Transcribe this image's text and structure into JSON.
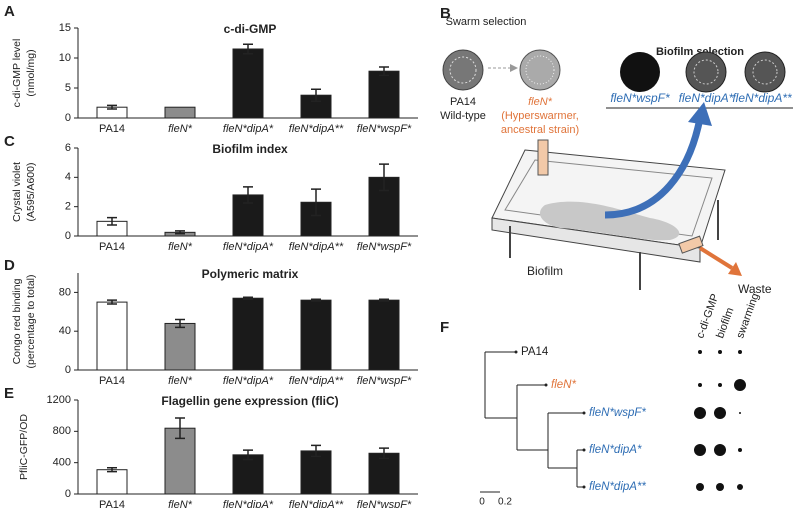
{
  "panel_labels": [
    "A",
    "B",
    "C",
    "D",
    "E",
    "F"
  ],
  "chart_data": [
    {
      "type": "bar",
      "title": "c-di-GMP",
      "ylabel": [
        "c-di-GMP level",
        "(nmol/mg)"
      ],
      "categories": [
        "PA14",
        "fleN*",
        "fleN*dipA*",
        "fleN*dipA**",
        "fleN*wspF*"
      ],
      "values": [
        1.8,
        1.8,
        11.5,
        3.8,
        7.8
      ],
      "errors": [
        0.3,
        null,
        0.8,
        1.0,
        0.7
      ],
      "colors": [
        "#ffffff",
        "#8c8c8c",
        "#1a1a1a",
        "#1a1a1a",
        "#1a1a1a"
      ],
      "ylim": [
        0,
        15
      ],
      "yticks": [
        0,
        5,
        10,
        15
      ]
    },
    {
      "type": "bar",
      "title": "Biofilm index",
      "ylabel": [
        "Crystal violet",
        "(A595/A600)"
      ],
      "categories": [
        "PA14",
        "fleN*",
        "fleN*dipA*",
        "fleN*dipA**",
        "fleN*wspF*"
      ],
      "values": [
        1.0,
        0.25,
        2.8,
        2.3,
        4.0
      ],
      "errors": [
        0.25,
        0.1,
        0.55,
        0.9,
        0.9
      ],
      "colors": [
        "#ffffff",
        "#8c8c8c",
        "#1a1a1a",
        "#1a1a1a",
        "#1a1a1a"
      ],
      "ylim": [
        0,
        6
      ],
      "yticks": [
        0,
        2,
        4,
        6
      ]
    },
    {
      "type": "bar",
      "title": "Polymeric matrix",
      "ylabel": [
        "Congo red binding",
        "(percentage to total)"
      ],
      "categories": [
        "PA14",
        "fleN*",
        "fleN*dipA*",
        "fleN*dipA**",
        "fleN*wspF*"
      ],
      "values": [
        70,
        48,
        74,
        72,
        72
      ],
      "errors": [
        2,
        4,
        1,
        1,
        1
      ],
      "colors": [
        "#ffffff",
        "#8c8c8c",
        "#1a1a1a",
        "#1a1a1a",
        "#1a1a1a"
      ],
      "ylim": [
        0,
        100
      ],
      "yticks": [
        0,
        40,
        80
      ]
    },
    {
      "type": "bar",
      "title": "Flagellin gene expression (fliC)",
      "ylabel": [
        "PfliC-GFP/OD"
      ],
      "categories": [
        "PA14",
        "fleN*",
        "fleN*dipA*",
        "fleN*dipA**",
        "fleN*wspF*"
      ],
      "values": [
        310,
        840,
        500,
        550,
        520
      ],
      "errors": [
        25,
        130,
        60,
        70,
        65
      ],
      "colors": [
        "#ffffff",
        "#8c8c8c",
        "#1a1a1a",
        "#1a1a1a",
        "#1a1a1a"
      ],
      "ylim": [
        0,
        1200
      ],
      "yticks": [
        0,
        400,
        800,
        1200
      ]
    }
  ],
  "diagram": {
    "swarm_title": "Swarm selection",
    "wt_name": "PA14",
    "wt_desc": "Wild-type",
    "ancestor_name": "fleN*",
    "ancestor_desc": [
      "(Hyperswarmer,",
      "ancestral strain)"
    ],
    "biofilm_title": "Biofilm selection",
    "biofilm_strains": [
      "fleN*wspF*",
      "fleN*dipA*",
      "fleN*dipA**"
    ],
    "biofilm_label": "Biofilm",
    "waste_label": "Waste"
  },
  "tree": {
    "leaves": [
      "PA14",
      "fleN*",
      "fleN*wspF*",
      "fleN*dipA*",
      "fleN*dipA**"
    ],
    "columns": [
      "c-di-GMP",
      "biofilm",
      "swarming"
    ],
    "dot_sizes": [
      [
        2,
        2,
        2
      ],
      [
        2,
        2,
        6
      ],
      [
        6,
        6,
        1
      ],
      [
        6,
        6,
        2
      ],
      [
        4,
        4,
        3
      ]
    ],
    "scale": [
      "0",
      "0.2"
    ]
  }
}
